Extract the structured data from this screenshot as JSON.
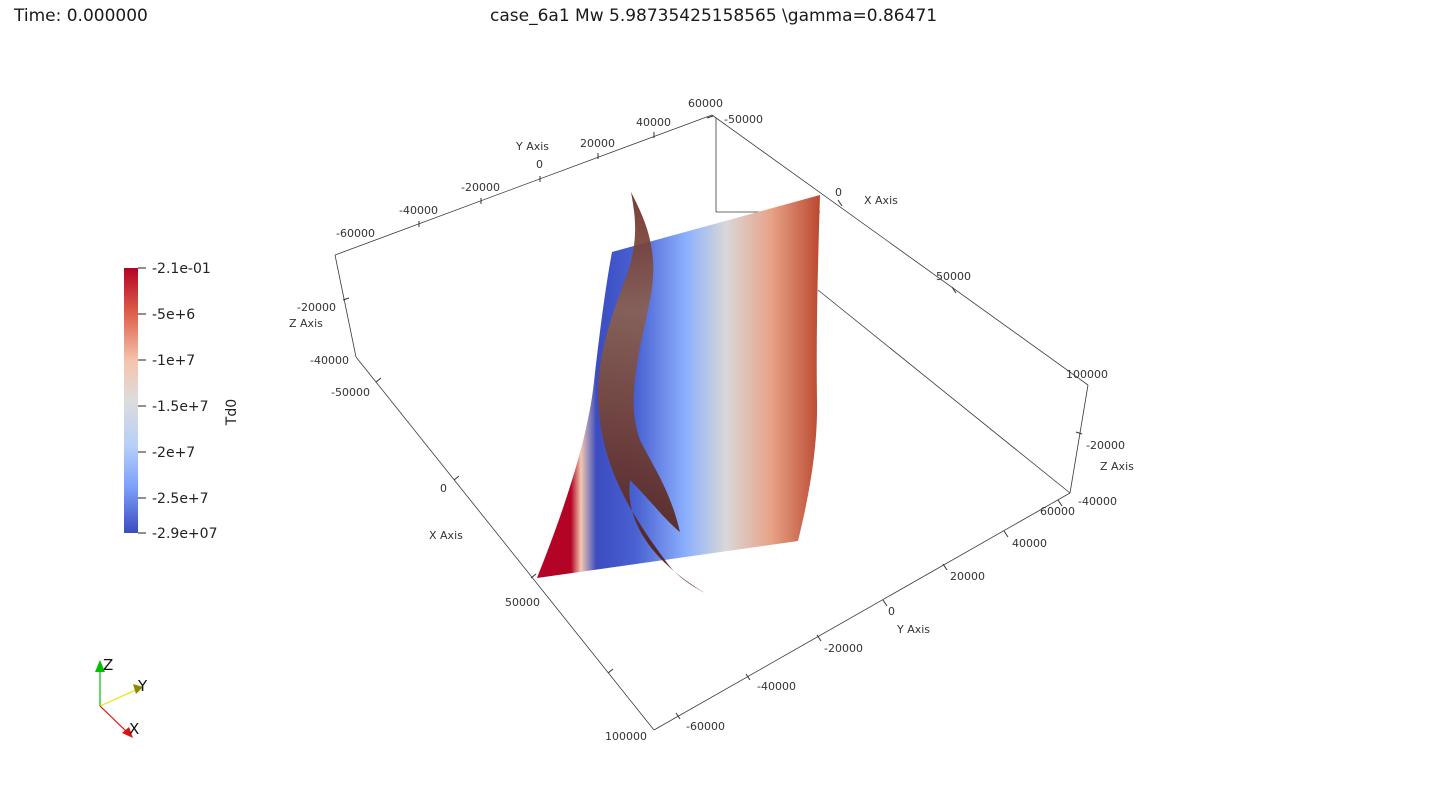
{
  "time_label": "Time: 0.000000",
  "title": "case_6a1 Mw  5.98735425158565   \\gamma=0.86471",
  "colorbar": {
    "title": "Td0",
    "ticks": [
      "-2.1e-01",
      "-5e+6",
      "-1e+7",
      "-1.5e+7",
      "-2e+7",
      "-2.5e+7",
      "-2.9e+07"
    ],
    "colors": [
      "#b40426",
      "#dd5f4b",
      "#f5c4ad",
      "#dddcdc",
      "#b7cff9",
      "#7b9ff9",
      "#3b4cc0"
    ]
  },
  "axes": {
    "y_axis_label": "Y Axis",
    "x_axis_label": "X Axis",
    "z_axis_label": "Z Axis",
    "top_y_ticks": [
      "60000",
      "40000",
      "20000",
      "0",
      "-20000",
      "-40000",
      "-60000"
    ],
    "top_x_ticks": [
      "-50000",
      "0",
      "50000",
      "100000"
    ],
    "left_z_ticks": [
      "-20000",
      "-40000"
    ],
    "left_x_ticks": [
      "-50000",
      "0",
      "50000",
      "100000"
    ],
    "right_z_ticks": [
      "-20000",
      "-40000"
    ],
    "bottom_y_ticks": [
      "60000",
      "40000",
      "20000",
      "0",
      "-20000",
      "-40000",
      "-60000"
    ]
  },
  "orientation": {
    "z": "Z",
    "y": "Y",
    "x": "X",
    "z_color": "#00c000",
    "y_color": "#e6e600",
    "x_color": "#e01010"
  }
}
